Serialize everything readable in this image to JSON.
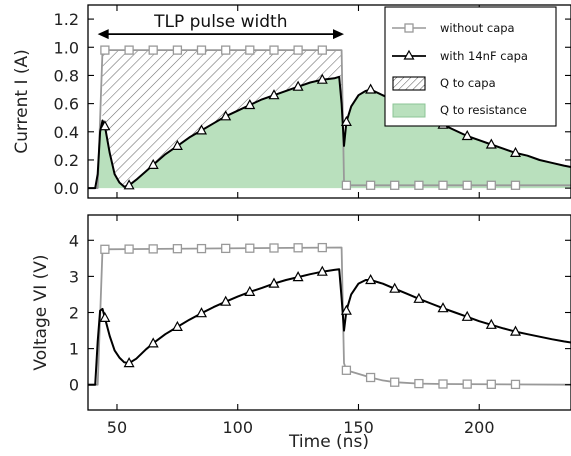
{
  "chart_data": [
    {
      "type": "line",
      "panel": "current",
      "ylabel": "Current I (A)",
      "xlabel": "",
      "xlim": [
        38,
        238
      ],
      "ylim": [
        -0.07,
        1.3
      ],
      "xticks": [
        50,
        100,
        150,
        200
      ],
      "yticks": [
        0.0,
        0.2,
        0.4,
        0.6,
        0.8,
        1.0,
        1.2
      ],
      "ytick_labels": [
        "0.0",
        "0.2",
        "0.4",
        "0.6",
        "0.8",
        "1.0",
        "1.2"
      ],
      "annotation": {
        "text": "TLP pulse width",
        "x_start": 42,
        "x_end": 144,
        "y": 1.2
      },
      "legend": {
        "placement": "top-right",
        "entries": [
          "without capa",
          "with 14nF capa",
          "Q to capa",
          "Q to resistance"
        ]
      },
      "series": [
        {
          "name": "without capa",
          "color": "#999999",
          "marker": "square",
          "points": [
            [
              38,
              0
            ],
            [
              42,
              0
            ],
            [
              44,
              0.98
            ],
            [
              143,
              0.98
            ],
            [
              144,
              0.05
            ],
            [
              145,
              0.02
            ],
            [
              238,
              0.02
            ]
          ],
          "marker_x": [
            45,
            55,
            65,
            75,
            85,
            95,
            105,
            115,
            125,
            135,
            145,
            155,
            165,
            175,
            185,
            195,
            205,
            215
          ]
        },
        {
          "name": "with 14nF capa",
          "color": "#000000",
          "marker": "triangle",
          "points": [
            [
              38,
              0
            ],
            [
              41,
              0
            ],
            [
              42,
              0.1
            ],
            [
              43,
              0.4
            ],
            [
              44,
              0.48
            ],
            [
              45,
              0.44
            ],
            [
              47,
              0.25
            ],
            [
              49,
              0.1
            ],
            [
              51,
              0.04
            ],
            [
              53,
              0.01
            ],
            [
              55,
              0.02
            ],
            [
              58,
              0.06
            ],
            [
              62,
              0.12
            ],
            [
              66,
              0.18
            ],
            [
              70,
              0.24
            ],
            [
              75,
              0.3
            ],
            [
              80,
              0.36
            ],
            [
              85,
              0.41
            ],
            [
              90,
              0.46
            ],
            [
              95,
              0.51
            ],
            [
              100,
              0.55
            ],
            [
              105,
              0.59
            ],
            [
              110,
              0.63
            ],
            [
              115,
              0.66
            ],
            [
              120,
              0.69
            ],
            [
              125,
              0.72
            ],
            [
              130,
              0.75
            ],
            [
              135,
              0.77
            ],
            [
              140,
              0.78
            ],
            [
              142,
              0.79
            ],
            [
              143,
              0.6
            ],
            [
              144,
              0.3
            ],
            [
              145,
              0.47
            ],
            [
              147,
              0.58
            ],
            [
              150,
              0.66
            ],
            [
              153,
              0.69
            ],
            [
              155,
              0.7
            ],
            [
              160,
              0.66
            ],
            [
              165,
              0.62
            ],
            [
              170,
              0.58
            ],
            [
              175,
              0.53
            ],
            [
              180,
              0.49
            ],
            [
              185,
              0.45
            ],
            [
              190,
              0.41
            ],
            [
              195,
              0.37
            ],
            [
              200,
              0.34
            ],
            [
              205,
              0.31
            ],
            [
              210,
              0.28
            ],
            [
              215,
              0.25
            ],
            [
              220,
              0.23
            ],
            [
              225,
              0.2
            ],
            [
              230,
              0.18
            ],
            [
              235,
              0.16
            ],
            [
              238,
              0.15
            ]
          ],
          "marker_x": [
            45,
            55,
            65,
            75,
            85,
            95,
            105,
            115,
            125,
            135,
            145,
            155,
            165,
            175,
            185,
            195,
            205,
            215
          ]
        }
      ]
    },
    {
      "type": "line",
      "panel": "voltage",
      "ylabel": "Voltage VI (V)",
      "xlabel": "Time (ns)",
      "xlim": [
        38,
        238
      ],
      "ylim": [
        -0.7,
        4.7
      ],
      "xticks": [
        50,
        100,
        150,
        200
      ],
      "xtick_labels": [
        "50",
        "100",
        "150",
        "200"
      ],
      "yticks": [
        0,
        1,
        2,
        3,
        4
      ],
      "ytick_labels": [
        "0",
        "1",
        "2",
        "3",
        "4"
      ],
      "series": [
        {
          "name": "without capa",
          "color": "#999999",
          "marker": "square",
          "points": [
            [
              38,
              0
            ],
            [
              42,
              0
            ],
            [
              44,
              3.75
            ],
            [
              143,
              3.8
            ],
            [
              144,
              0.6
            ],
            [
              145,
              0.4
            ],
            [
              150,
              0.3
            ],
            [
              155,
              0.2
            ],
            [
              160,
              0.12
            ],
            [
              165,
              0.07
            ],
            [
              175,
              0.03
            ],
            [
              185,
              0.02
            ],
            [
              238,
              0
            ]
          ],
          "marker_x": [
            45,
            55,
            65,
            75,
            85,
            95,
            105,
            115,
            125,
            135,
            145,
            155,
            165,
            175,
            185,
            195,
            205,
            215
          ]
        },
        {
          "name": "with 14nF capa",
          "color": "#000000",
          "marker": "triangle",
          "points": [
            [
              38,
              0
            ],
            [
              41,
              0
            ],
            [
              42,
              1.2
            ],
            [
              43,
              2.05
            ],
            [
              44,
              2.1
            ],
            [
              45,
              1.85
            ],
            [
              47,
              1.35
            ],
            [
              49,
              0.95
            ],
            [
              51,
              0.75
            ],
            [
              53,
              0.62
            ],
            [
              55,
              0.6
            ],
            [
              58,
              0.72
            ],
            [
              62,
              0.98
            ],
            [
              66,
              1.2
            ],
            [
              70,
              1.4
            ],
            [
              75,
              1.6
            ],
            [
              80,
              1.8
            ],
            [
              85,
              1.98
            ],
            [
              90,
              2.15
            ],
            [
              95,
              2.3
            ],
            [
              100,
              2.44
            ],
            [
              105,
              2.57
            ],
            [
              110,
              2.68
            ],
            [
              115,
              2.8
            ],
            [
              120,
              2.9
            ],
            [
              125,
              2.98
            ],
            [
              130,
              3.06
            ],
            [
              135,
              3.13
            ],
            [
              140,
              3.18
            ],
            [
              142,
              3.2
            ],
            [
              143,
              2.4
            ],
            [
              144,
              1.5
            ],
            [
              145,
              2.05
            ],
            [
              147,
              2.5
            ],
            [
              150,
              2.8
            ],
            [
              153,
              2.9
            ],
            [
              155,
              2.9
            ],
            [
              160,
              2.8
            ],
            [
              165,
              2.66
            ],
            [
              170,
              2.52
            ],
            [
              175,
              2.38
            ],
            [
              180,
              2.25
            ],
            [
              185,
              2.12
            ],
            [
              190,
              2.0
            ],
            [
              195,
              1.88
            ],
            [
              200,
              1.76
            ],
            [
              205,
              1.66
            ],
            [
              210,
              1.56
            ],
            [
              215,
              1.47
            ],
            [
              220,
              1.4
            ],
            [
              225,
              1.33
            ],
            [
              230,
              1.26
            ],
            [
              235,
              1.2
            ],
            [
              238,
              1.17
            ]
          ],
          "marker_x": [
            45,
            55,
            65,
            75,
            85,
            95,
            105,
            115,
            125,
            135,
            145,
            155,
            165,
            175,
            185,
            195,
            205,
            215
          ]
        }
      ]
    }
  ],
  "colors": {
    "without_capa": "#999999",
    "with_capa": "#000000",
    "q_to_resistance_fill": "#b9e0bd",
    "q_to_capa_hatch": "#6a6a6a"
  }
}
